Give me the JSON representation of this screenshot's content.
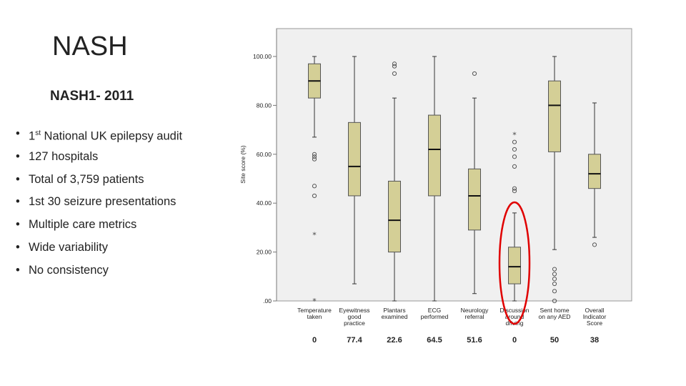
{
  "slide": {
    "title": "NASH",
    "subtitle": "NASH1- 2011",
    "bullets": [
      {
        "pre": "1",
        "sup": "st",
        "post": " National UK epilepsy audit"
      },
      {
        "pre": "127 hospitals",
        "sup": "",
        "post": ""
      },
      {
        "pre": "Total of 3,759 patients",
        "sup": "",
        "post": ""
      },
      {
        "pre": "1st 30 seizure presentations",
        "sup": "",
        "post": ""
      },
      {
        "pre": "Multiple care metrics",
        "sup": "",
        "post": ""
      },
      {
        "pre": "Wide variability",
        "sup": "",
        "post": ""
      },
      {
        "pre": "No consistency",
        "sup": "",
        "post": ""
      }
    ]
  },
  "colors": {
    "box_fill": "#d4cf96",
    "box_stroke": "#555555",
    "plot_bg": "#f0f0f0",
    "highlight": "#e00000"
  },
  "chart_data": {
    "type": "boxplot",
    "ylabel": "Site score (%)",
    "ylim": [
      0,
      100
    ],
    "yticks": [
      {
        "v": 0,
        "label": ".00"
      },
      {
        "v": 20,
        "label": "20.00"
      },
      {
        "v": 40,
        "label": "40.00"
      },
      {
        "v": 60,
        "label": "60.00"
      },
      {
        "v": 80,
        "label": "80.00"
      },
      {
        "v": 100,
        "label": "100.00"
      }
    ],
    "grid": false,
    "categories": [
      {
        "label": [
          "Temperature",
          "taken"
        ],
        "score": "0",
        "min": 67,
        "q1": 83,
        "median": 90,
        "q3": 97,
        "max": 100,
        "outliers": [
          60,
          59,
          58,
          47,
          43
        ],
        "extremes": [
          27,
          0
        ]
      },
      {
        "label": [
          "Eyewitness",
          "good",
          "practice"
        ],
        "score": "77.4",
        "min": 7,
        "q1": 43,
        "median": 55,
        "q3": 73,
        "max": 100,
        "outliers": [],
        "extremes": []
      },
      {
        "label": [
          "Plantars",
          "examined"
        ],
        "score": "22.6",
        "min": 0,
        "q1": 20,
        "median": 33,
        "q3": 49,
        "max": 83,
        "outliers": [
          97,
          96,
          93
        ],
        "extremes": []
      },
      {
        "label": [
          "ECG",
          "performed"
        ],
        "score": "64.5",
        "min": 0,
        "q1": 43,
        "median": 62,
        "q3": 76,
        "max": 100,
        "outliers": [],
        "extremes": []
      },
      {
        "label": [
          "Neurology",
          "referral"
        ],
        "score": "51.6",
        "min": 3,
        "q1": 29,
        "median": 43,
        "q3": 54,
        "max": 83,
        "outliers": [
          93
        ],
        "extremes": []
      },
      {
        "label": [
          "Discussion",
          "around",
          "driving"
        ],
        "score": "0",
        "min": 0,
        "q1": 7,
        "median": 14,
        "q3": 22,
        "max": 36,
        "outliers": [
          65,
          62,
          59,
          55,
          46,
          45
        ],
        "extremes": [
          68
        ]
      },
      {
        "label": [
          "Sent home",
          "on any AED"
        ],
        "score": "50",
        "min": 21,
        "q1": 61,
        "median": 80,
        "q3": 90,
        "max": 100,
        "outliers": [
          13,
          11,
          9,
          7,
          4,
          0
        ],
        "extremes": []
      },
      {
        "label": [
          "Overall",
          "Indicator",
          "Score"
        ],
        "score": "38",
        "min": 26,
        "q1": 46,
        "median": 52,
        "q3": 60,
        "max": 81,
        "outliers": [
          23
        ],
        "extremes": []
      }
    ],
    "highlight_index": 5
  }
}
